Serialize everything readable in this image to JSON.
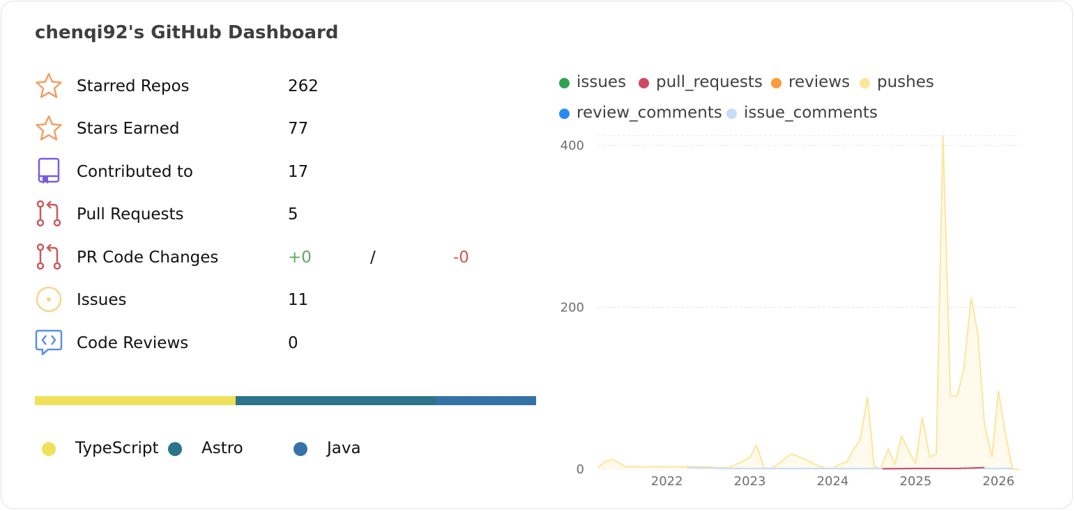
{
  "title": "chenqi92's GitHub Dashboard",
  "stats": [
    {
      "label": "Starred Repos",
      "value": "262",
      "icon": "star-icon"
    },
    {
      "label": "Stars Earned",
      "value": "77",
      "icon": "star-icon"
    },
    {
      "label": "Contributed to",
      "value": "17",
      "icon": "repo-icon"
    },
    {
      "label": "Pull Requests",
      "value": "5",
      "icon": "git-pull-request-icon"
    },
    {
      "label": "PR Code Changes",
      "additions": "+0",
      "separator": "/",
      "deletions": "-0",
      "icon": "git-pull-request-icon"
    },
    {
      "label": "Issues",
      "value": "11",
      "icon": "issue-icon"
    },
    {
      "label": "Code Reviews",
      "value": "0",
      "icon": "code-review-icon"
    }
  ],
  "languages": [
    {
      "name": "TypeScript",
      "color": "#f1e05a",
      "share": 0.4
    },
    {
      "name": "Astro",
      "color": "#2b7489",
      "share": 0.4
    },
    {
      "name": "Java",
      "color": "#3572a5",
      "share": 0.2
    }
  ],
  "colors": {
    "star": "#f59e63",
    "repo": "#7b5ce0",
    "pr": "#c95a5a",
    "issue": "#f6d68b",
    "review": "#5b8fe5"
  },
  "chart_data": {
    "type": "area",
    "legend": [
      {
        "name": "issues",
        "color": "#2ea44f"
      },
      {
        "name": "pull_requests",
        "color": "#d04763"
      },
      {
        "name": "reviews",
        "color": "#fb9b3a"
      },
      {
        "name": "pushes",
        "color": "#fde59a"
      },
      {
        "name": "review_comments",
        "color": "#2a8af6"
      },
      {
        "name": "issue_comments",
        "color": "#c5dcfb"
      }
    ],
    "x_ticks": [
      "2022",
      "2023",
      "2024",
      "2025",
      "2026"
    ],
    "x_tick_values": [
      2022.0,
      2023.0,
      2024.0,
      2025.0,
      2026.0
    ],
    "xlim": [
      2021.17,
      2026.25
    ],
    "y_ticks": [
      "0",
      "200",
      "400"
    ],
    "y_tick_values": [
      0,
      200,
      400
    ],
    "ylim": [
      0,
      412
    ],
    "series": [
      {
        "name": "pushes",
        "color": "#fde59a",
        "fill": "#fffaeb",
        "x": [
          2021.17,
          2021.25,
          2021.33,
          2021.42,
          2021.5,
          2021.58,
          2021.67,
          2021.75,
          2021.83,
          2021.92,
          2022.0,
          2022.08,
          2022.17,
          2022.25,
          2022.33,
          2022.42,
          2022.5,
          2022.58,
          2022.67,
          2022.75,
          2022.83,
          2022.92,
          2023.0,
          2023.08,
          2023.17,
          2023.25,
          2023.33,
          2023.42,
          2023.5,
          2023.58,
          2023.67,
          2023.75,
          2023.83,
          2023.92,
          2024.0,
          2024.08,
          2024.17,
          2024.25,
          2024.33,
          2024.42,
          2024.5,
          2024.58,
          2024.67,
          2024.75,
          2024.83,
          2024.92,
          2025.0,
          2025.08,
          2025.17,
          2025.25,
          2025.33,
          2025.42,
          2025.5,
          2025.58,
          2025.67,
          2025.75,
          2025.83,
          2025.92,
          2026.0,
          2026.08,
          2026.17,
          2026.25
        ],
        "values": [
          2,
          9,
          12,
          8,
          3,
          3,
          3,
          3,
          3,
          3,
          3,
          3,
          3,
          3,
          3,
          3,
          3,
          2,
          2,
          2,
          6,
          10,
          14,
          30,
          2,
          1,
          5,
          13,
          19,
          16,
          12,
          8,
          4,
          1,
          1,
          6,
          9,
          24,
          36,
          89,
          3,
          1,
          25,
          6,
          41,
          22,
          7,
          64,
          15,
          19,
          412,
          91,
          90,
          122,
          212,
          168,
          56,
          15,
          97,
          45,
          0,
          0
        ]
      },
      {
        "name": "issue_comments",
        "color": "#c5dcfb",
        "fill": "none",
        "x": [
          2022.25,
          2022.83,
          2023.25,
          2024.0,
          2024.5,
          2025.0,
          2025.5,
          2025.83,
          2026.17
        ],
        "values": [
          2,
          1,
          1,
          1,
          1,
          1,
          1,
          1,
          1
        ]
      },
      {
        "name": "pull_requests",
        "color": "#d04763",
        "fill": "none",
        "x": [
          2024.6,
          2025.0,
          2025.5,
          2025.83
        ],
        "values": [
          0.5,
          1,
          1,
          2
        ]
      }
    ]
  }
}
